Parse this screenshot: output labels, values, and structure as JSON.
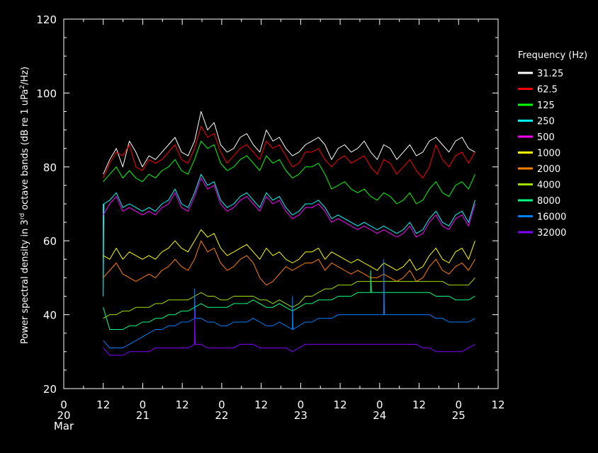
{
  "chart_data": {
    "type": "line",
    "ylabel": "Power spectral density in 3rd octave bands (dB re 1 uPa²/Hz)",
    "ylabel_parts": {
      "pre": "Power spectral density in 3",
      "sup": "rd",
      "post": " octave bands (dB re 1 uPa",
      "sup2": "2",
      "post2": "/Hz)"
    },
    "ylim": [
      20,
      120
    ],
    "y_major_ticks": [
      "20",
      "40",
      "60",
      "80",
      "100",
      "120"
    ],
    "x_tick_labels": [
      {
        "hour": 0,
        "line1": "0",
        "line2": "20",
        "line3": "Mar"
      },
      {
        "hour": 12,
        "line1": "12",
        "line2": "",
        "line3": ""
      },
      {
        "hour": 24,
        "line1": "0",
        "line2": "21",
        "line3": ""
      },
      {
        "hour": 36,
        "line1": "12",
        "line2": "",
        "line3": ""
      },
      {
        "hour": 48,
        "line1": "0",
        "line2": "22",
        "line3": ""
      },
      {
        "hour": 60,
        "line1": "12",
        "line2": "",
        "line3": ""
      },
      {
        "hour": 72,
        "line1": "0",
        "line2": "23",
        "line3": ""
      },
      {
        "hour": 84,
        "line1": "12",
        "line2": "",
        "line3": ""
      },
      {
        "hour": 96,
        "line1": "0",
        "line2": "24",
        "line3": ""
      },
      {
        "hour": 108,
        "line1": "12",
        "line2": "",
        "line3": ""
      },
      {
        "hour": 120,
        "line1": "0",
        "line2": "25",
        "line3": ""
      },
      {
        "hour": 132,
        "line1": "12",
        "line2": "",
        "line3": ""
      }
    ],
    "xlim_hours": [
      0,
      132
    ],
    "legend": {
      "title": "Frequency (Hz)",
      "placement": "right"
    },
    "series": [
      {
        "name": "31.25",
        "color": "#ffffff",
        "values": [
          78,
          82,
          85,
          80,
          87,
          84,
          80,
          83,
          82,
          84,
          86,
          88,
          84,
          83,
          87,
          95,
          90,
          92,
          86,
          84,
          85,
          88,
          89,
          86,
          84,
          90,
          87,
          88,
          85,
          83,
          84,
          86,
          87,
          88,
          86,
          82,
          85,
          86,
          84,
          85,
          87,
          84,
          82,
          86,
          85,
          82,
          84,
          86,
          83,
          84,
          87,
          88,
          86,
          84,
          87,
          88,
          85,
          84
        ]
      },
      {
        "name": "62.5",
        "color": "#ff0000",
        "values": [
          77,
          81,
          84,
          83,
          86,
          80,
          79,
          82,
          81,
          82,
          84,
          86,
          82,
          81,
          85,
          91,
          88,
          89,
          84,
          81,
          83,
          85,
          86,
          84,
          82,
          87,
          85,
          86,
          83,
          80,
          81,
          84,
          84,
          85,
          82,
          80,
          82,
          83,
          81,
          82,
          83,
          80,
          78,
          82,
          81,
          78,
          80,
          82,
          79,
          77,
          80,
          86,
          82,
          80,
          83,
          84,
          81,
          84
        ]
      },
      {
        "name": "125",
        "color": "#00ff00",
        "values": [
          76,
          78,
          80,
          77,
          79,
          77,
          76,
          78,
          77,
          79,
          80,
          82,
          79,
          78,
          82,
          87,
          85,
          86,
          81,
          79,
          80,
          82,
          83,
          81,
          79,
          83,
          81,
          82,
          79,
          77,
          78,
          80,
          80,
          81,
          78,
          74,
          75,
          76,
          74,
          73,
          74,
          72,
          71,
          73,
          72,
          70,
          71,
          73,
          70,
          71,
          74,
          76,
          73,
          72,
          75,
          76,
          74,
          78
        ]
      },
      {
        "name": "250",
        "color": "#00ffff",
        "values": [
          70,
          71,
          73,
          69,
          70,
          69,
          68,
          69,
          68,
          70,
          71,
          74,
          70,
          69,
          73,
          78,
          75,
          76,
          71,
          69,
          70,
          72,
          73,
          71,
          69,
          73,
          71,
          72,
          69,
          67,
          68,
          70,
          70,
          71,
          69,
          66,
          67,
          66,
          65,
          64,
          65,
          64,
          63,
          64,
          63,
          62,
          63,
          65,
          62,
          63,
          66,
          68,
          65,
          64,
          67,
          68,
          65,
          71
        ]
      },
      {
        "name": "500",
        "color": "#ff00ff",
        "values": [
          67,
          70,
          72,
          68,
          69,
          68,
          67,
          68,
          67,
          69,
          70,
          73,
          69,
          68,
          72,
          77,
          74,
          75,
          70,
          68,
          69,
          71,
          72,
          70,
          68,
          72,
          70,
          71,
          68,
          66,
          67,
          69,
          69,
          70,
          68,
          65,
          66,
          65,
          64,
          63,
          64,
          63,
          62,
          63,
          62,
          61,
          62,
          64,
          61,
          62,
          65,
          67,
          64,
          63,
          66,
          67,
          64,
          70
        ]
      },
      {
        "name": "1000",
        "color": "#ffff00",
        "values": [
          56,
          55,
          58,
          55,
          57,
          56,
          55,
          56,
          55,
          57,
          58,
          60,
          58,
          57,
          60,
          63,
          61,
          62,
          58,
          56,
          57,
          58,
          59,
          57,
          55,
          58,
          56,
          57,
          55,
          54,
          55,
          57,
          57,
          58,
          55,
          57,
          56,
          55,
          54,
          55,
          54,
          53,
          52,
          54,
          53,
          52,
          53,
          55,
          52,
          53,
          56,
          58,
          55,
          54,
          57,
          58,
          55,
          60
        ]
      },
      {
        "name": "2000",
        "color": "#ff8000",
        "values": [
          50,
          52,
          54,
          51,
          50,
          49,
          50,
          51,
          50,
          52,
          53,
          55,
          53,
          52,
          55,
          60,
          57,
          58,
          54,
          52,
          53,
          55,
          56,
          54,
          50,
          48,
          49,
          51,
          53,
          52,
          53,
          54,
          54,
          55,
          52,
          54,
          53,
          52,
          51,
          52,
          51,
          50,
          50,
          51,
          50,
          49,
          50,
          52,
          49,
          50,
          53,
          55,
          52,
          51,
          53,
          54,
          52,
          55
        ]
      },
      {
        "name": "4000",
        "color": "#a0e000",
        "values": [
          39,
          40,
          40,
          41,
          41,
          42,
          42,
          42,
          43,
          43,
          44,
          44,
          44,
          44,
          45,
          46,
          45,
          45,
          44,
          44,
          45,
          45,
          45,
          45,
          44,
          44,
          43,
          44,
          43,
          42,
          43,
          45,
          45,
          46,
          47,
          47,
          48,
          48,
          48,
          49,
          49,
          49,
          49,
          49,
          49,
          49,
          49,
          49,
          49,
          49,
          49,
          49,
          49,
          48,
          48,
          48,
          48,
          50
        ]
      },
      {
        "name": "8000",
        "color": "#00ff80",
        "values": [
          42,
          36,
          36,
          36,
          37,
          37,
          38,
          38,
          39,
          39,
          40,
          40,
          41,
          41,
          42,
          43,
          42,
          42,
          42,
          42,
          43,
          43,
          43,
          44,
          43,
          42,
          42,
          43,
          42,
          41,
          42,
          43,
          43,
          44,
          44,
          44,
          45,
          45,
          45,
          46,
          46,
          46,
          46,
          46,
          46,
          46,
          46,
          46,
          46,
          46,
          46,
          45,
          45,
          45,
          44,
          44,
          44,
          45
        ]
      },
      {
        "name": "16000",
        "color": "#0080ff",
        "values": [
          33,
          31,
          31,
          31,
          32,
          33,
          34,
          35,
          36,
          36,
          37,
          37,
          38,
          38,
          39,
          39,
          38,
          38,
          37,
          37,
          38,
          38,
          38,
          39,
          38,
          37,
          37,
          38,
          37,
          36,
          37,
          38,
          38,
          39,
          39,
          39,
          40,
          40,
          40,
          40,
          40,
          40,
          40,
          40,
          40,
          40,
          40,
          40,
          40,
          40,
          40,
          39,
          39,
          38,
          38,
          38,
          38,
          39
        ]
      },
      {
        "name": "32000",
        "color": "#8000ff",
        "values": [
          31,
          29,
          29,
          29,
          30,
          30,
          30,
          30,
          31,
          31,
          31,
          31,
          31,
          31,
          32,
          32,
          31,
          31,
          31,
          31,
          31,
          32,
          32,
          32,
          31,
          31,
          31,
          31,
          31,
          30,
          31,
          32,
          32,
          32,
          32,
          32,
          32,
          32,
          32,
          32,
          32,
          32,
          32,
          32,
          32,
          32,
          32,
          32,
          32,
          31,
          31,
          30,
          30,
          30,
          30,
          30,
          31,
          32
        ]
      }
    ],
    "spikes": [
      {
        "series": "250",
        "index": 0,
        "value": 45
      },
      {
        "series": "16000",
        "index": 14,
        "value": 47
      },
      {
        "series": "32000",
        "index": 14,
        "value": 41
      },
      {
        "series": "16000",
        "index": 29,
        "value": 45
      },
      {
        "series": "8000",
        "index": 41,
        "value": 52
      },
      {
        "series": "16000",
        "index": 43,
        "value": 55
      }
    ],
    "grid": false
  }
}
